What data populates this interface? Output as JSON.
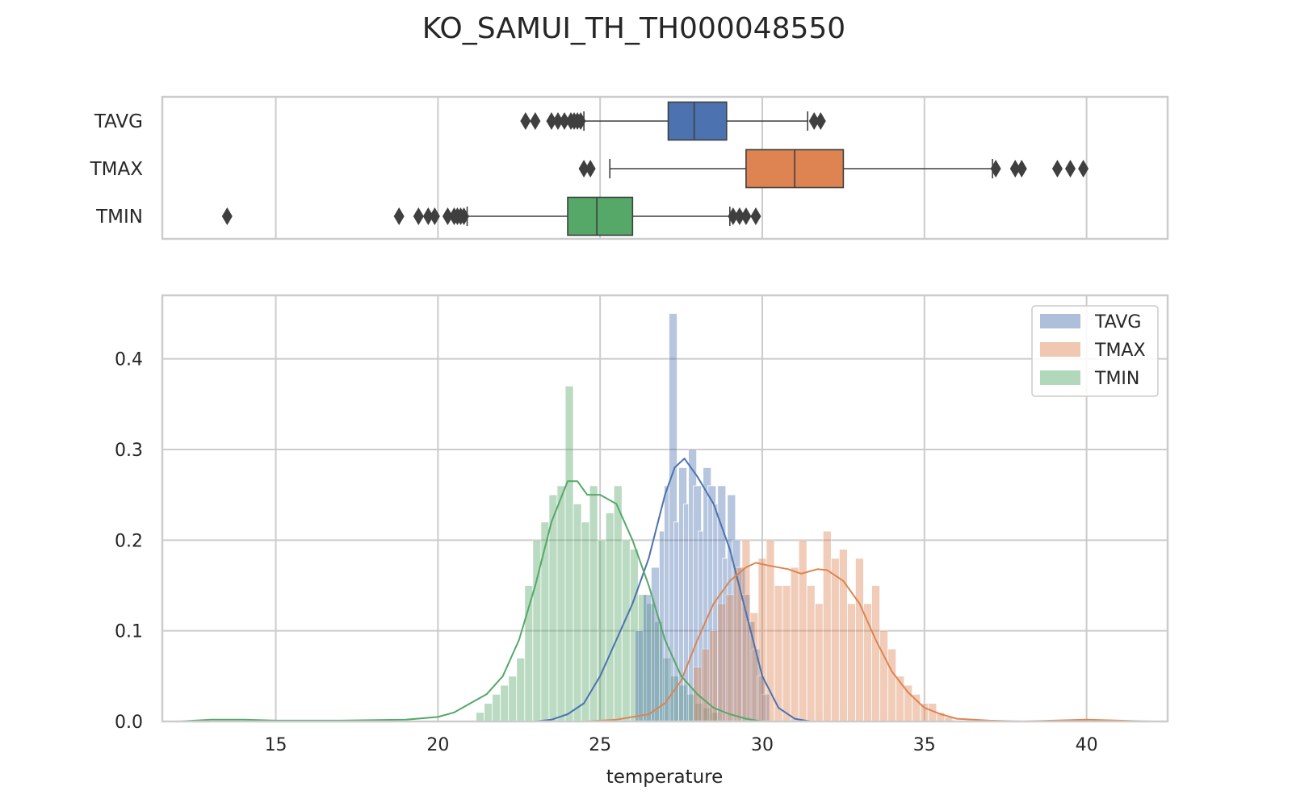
{
  "title": "KO_SAMUI_TH_TH000048550",
  "colors": {
    "TAVG": "#4c72b0",
    "TMAX": "#dd8452",
    "TMIN": "#55a868",
    "grid": "#cccccc",
    "outlier": "#3f3f3f"
  },
  "chart_data": [
    {
      "type": "boxplot",
      "orientation": "horizontal",
      "categories": [
        "TAVG",
        "TMAX",
        "TMIN"
      ],
      "xlim": [
        11.5,
        42.5
      ],
      "grid": true,
      "boxes": [
        {
          "name": "TAVG",
          "whisker_low": 24.5,
          "q1": 27.1,
          "median": 27.9,
          "q3": 28.9,
          "whisker_high": 31.4,
          "outliers": [
            22.7,
            23.0,
            23.5,
            23.7,
            23.9,
            24.1,
            24.2,
            24.3,
            24.4,
            31.6,
            31.8
          ]
        },
        {
          "name": "TMAX",
          "whisker_low": 25.3,
          "q1": 29.5,
          "median": 31.0,
          "q3": 32.5,
          "whisker_high": 37.1,
          "outliers": [
            24.5,
            24.7,
            37.2,
            37.8,
            38.0,
            39.1,
            39.5,
            39.9
          ]
        },
        {
          "name": "TMIN",
          "whisker_low": 20.9,
          "q1": 24.0,
          "median": 24.9,
          "q3": 26.0,
          "whisker_high": 29.0,
          "outliers": [
            13.5,
            18.8,
            19.4,
            19.7,
            19.9,
            20.3,
            20.5,
            20.6,
            20.7,
            20.8,
            29.1,
            29.3,
            29.5,
            29.8
          ]
        }
      ]
    },
    {
      "type": "histogram",
      "xlabel": "temperature",
      "xlim": [
        11.5,
        42.5
      ],
      "ylim": [
        0,
        0.47
      ],
      "xticks": [
        15,
        20,
        25,
        30,
        35,
        40
      ],
      "yticks": [
        0.0,
        0.1,
        0.2,
        0.3,
        0.4
      ],
      "grid": true,
      "legend": {
        "position": "top-right",
        "entries": [
          "TAVG",
          "TMAX",
          "TMIN"
        ]
      },
      "series": [
        {
          "name": "TAVG",
          "bins": [
            [
              26.2,
              0.1
            ],
            [
              26.45,
              0.14
            ],
            [
              26.7,
              0.17
            ],
            [
              26.95,
              0.21
            ],
            [
              27.1,
              0.26
            ],
            [
              27.25,
              0.45
            ],
            [
              27.4,
              0.22
            ],
            [
              27.55,
              0.28
            ],
            [
              27.7,
              0.24
            ],
            [
              27.85,
              0.3
            ],
            [
              28.0,
              0.26
            ],
            [
              28.15,
              0.21
            ],
            [
              28.3,
              0.28
            ],
            [
              28.45,
              0.26
            ],
            [
              28.6,
              0.24
            ],
            [
              28.75,
              0.26
            ],
            [
              28.9,
              0.18
            ],
            [
              29.05,
              0.25
            ],
            [
              29.2,
              0.2
            ],
            [
              29.35,
              0.17
            ],
            [
              29.5,
              0.14
            ],
            [
              29.65,
              0.11
            ],
            [
              29.8,
              0.08
            ],
            [
              29.95,
              0.05
            ],
            [
              30.1,
              0.03
            ]
          ],
          "kde": [
            [
              23,
              0
            ],
            [
              23.5,
              0.002
            ],
            [
              24,
              0.008
            ],
            [
              24.5,
              0.02
            ],
            [
              25,
              0.05
            ],
            [
              25.5,
              0.09
            ],
            [
              26,
              0.13
            ],
            [
              26.5,
              0.18
            ],
            [
              27,
              0.25
            ],
            [
              27.3,
              0.28
            ],
            [
              27.6,
              0.29
            ],
            [
              28,
              0.27
            ],
            [
              28.5,
              0.24
            ],
            [
              29,
              0.19
            ],
            [
              29.5,
              0.12
            ],
            [
              30,
              0.05
            ],
            [
              30.5,
              0.015
            ],
            [
              31,
              0.003
            ],
            [
              31.5,
              0
            ]
          ]
        },
        {
          "name": "TMAX",
          "bins": [
            [
              28.0,
              0.06
            ],
            [
              28.25,
              0.08
            ],
            [
              28.5,
              0.1
            ],
            [
              28.75,
              0.13
            ],
            [
              29.0,
              0.14
            ],
            [
              29.25,
              0.17
            ],
            [
              29.5,
              0.2
            ],
            [
              29.75,
              0.12
            ],
            [
              30.0,
              0.18
            ],
            [
              30.25,
              0.2
            ],
            [
              30.5,
              0.15
            ],
            [
              30.75,
              0.15
            ],
            [
              31.0,
              0.17
            ],
            [
              31.25,
              0.2
            ],
            [
              31.5,
              0.15
            ],
            [
              31.75,
              0.13
            ],
            [
              32.0,
              0.21
            ],
            [
              32.25,
              0.18
            ],
            [
              32.5,
              0.19
            ],
            [
              32.75,
              0.13
            ],
            [
              33.0,
              0.18
            ],
            [
              33.25,
              0.13
            ],
            [
              33.5,
              0.15
            ],
            [
              33.75,
              0.1
            ],
            [
              34.0,
              0.08
            ],
            [
              34.25,
              0.05
            ],
            [
              34.5,
              0.04
            ],
            [
              34.75,
              0.03
            ],
            [
              35.0,
              0.02
            ],
            [
              35.25,
              0.02
            ],
            [
              35.5,
              0.01
            ],
            [
              35.75,
              0.005
            ]
          ],
          "kde": [
            [
              24.5,
              0
            ],
            [
              25.5,
              0.002
            ],
            [
              26.5,
              0.008
            ],
            [
              27,
              0.02
            ],
            [
              27.5,
              0.045
            ],
            [
              28,
              0.09
            ],
            [
              28.5,
              0.13
            ],
            [
              29,
              0.155
            ],
            [
              29.5,
              0.17
            ],
            [
              29.8,
              0.175
            ],
            [
              30.2,
              0.172
            ],
            [
              30.8,
              0.168
            ],
            [
              31.2,
              0.163
            ],
            [
              31.7,
              0.168
            ],
            [
              32,
              0.167
            ],
            [
              32.5,
              0.155
            ],
            [
              33,
              0.13
            ],
            [
              33.5,
              0.09
            ],
            [
              34,
              0.055
            ],
            [
              34.5,
              0.032
            ],
            [
              35,
              0.015
            ],
            [
              35.5,
              0.008
            ],
            [
              36,
              0.003
            ],
            [
              37,
              0.001
            ],
            [
              38,
              0
            ],
            [
              40,
              0.002
            ],
            [
              42,
              0
            ]
          ]
        },
        {
          "name": "TMIN",
          "bins": [
            [
              21.3,
              0.01
            ],
            [
              21.55,
              0.02
            ],
            [
              21.8,
              0.03
            ],
            [
              22.05,
              0.04
            ],
            [
              22.3,
              0.05
            ],
            [
              22.55,
              0.07
            ],
            [
              22.8,
              0.15
            ],
            [
              23.05,
              0.2
            ],
            [
              23.3,
              0.22
            ],
            [
              23.55,
              0.25
            ],
            [
              23.8,
              0.26
            ],
            [
              24.05,
              0.37
            ],
            [
              24.3,
              0.24
            ],
            [
              24.55,
              0.22
            ],
            [
              24.8,
              0.26
            ],
            [
              25.05,
              0.2
            ],
            [
              25.3,
              0.23
            ],
            [
              25.55,
              0.26
            ],
            [
              25.8,
              0.2
            ],
            [
              26.05,
              0.19
            ],
            [
              26.3,
              0.14
            ],
            [
              26.55,
              0.13
            ],
            [
              26.8,
              0.11
            ],
            [
              27.05,
              0.07
            ],
            [
              27.3,
              0.05
            ],
            [
              27.55,
              0.04
            ],
            [
              27.8,
              0.03
            ],
            [
              28.05,
              0.02
            ],
            [
              28.3,
              0.015
            ],
            [
              28.55,
              0.01
            ]
          ],
          "kde": [
            [
              12,
              0
            ],
            [
              13,
              0.002
            ],
            [
              14,
              0.002
            ],
            [
              15,
              0.001
            ],
            [
              17,
              0.001
            ],
            [
              19,
              0.002
            ],
            [
              20,
              0.005
            ],
            [
              20.5,
              0.01
            ],
            [
              21,
              0.02
            ],
            [
              21.5,
              0.03
            ],
            [
              22,
              0.05
            ],
            [
              22.5,
              0.09
            ],
            [
              23,
              0.15
            ],
            [
              23.5,
              0.22
            ],
            [
              24,
              0.265
            ],
            [
              24.3,
              0.265
            ],
            [
              24.6,
              0.25
            ],
            [
              25,
              0.25
            ],
            [
              25.5,
              0.24
            ],
            [
              26,
              0.2
            ],
            [
              26.5,
              0.15
            ],
            [
              27,
              0.09
            ],
            [
              27.5,
              0.05
            ],
            [
              28,
              0.03
            ],
            [
              28.5,
              0.015
            ],
            [
              29,
              0.008
            ],
            [
              29.5,
              0.003
            ],
            [
              30,
              0
            ]
          ]
        }
      ]
    }
  ]
}
